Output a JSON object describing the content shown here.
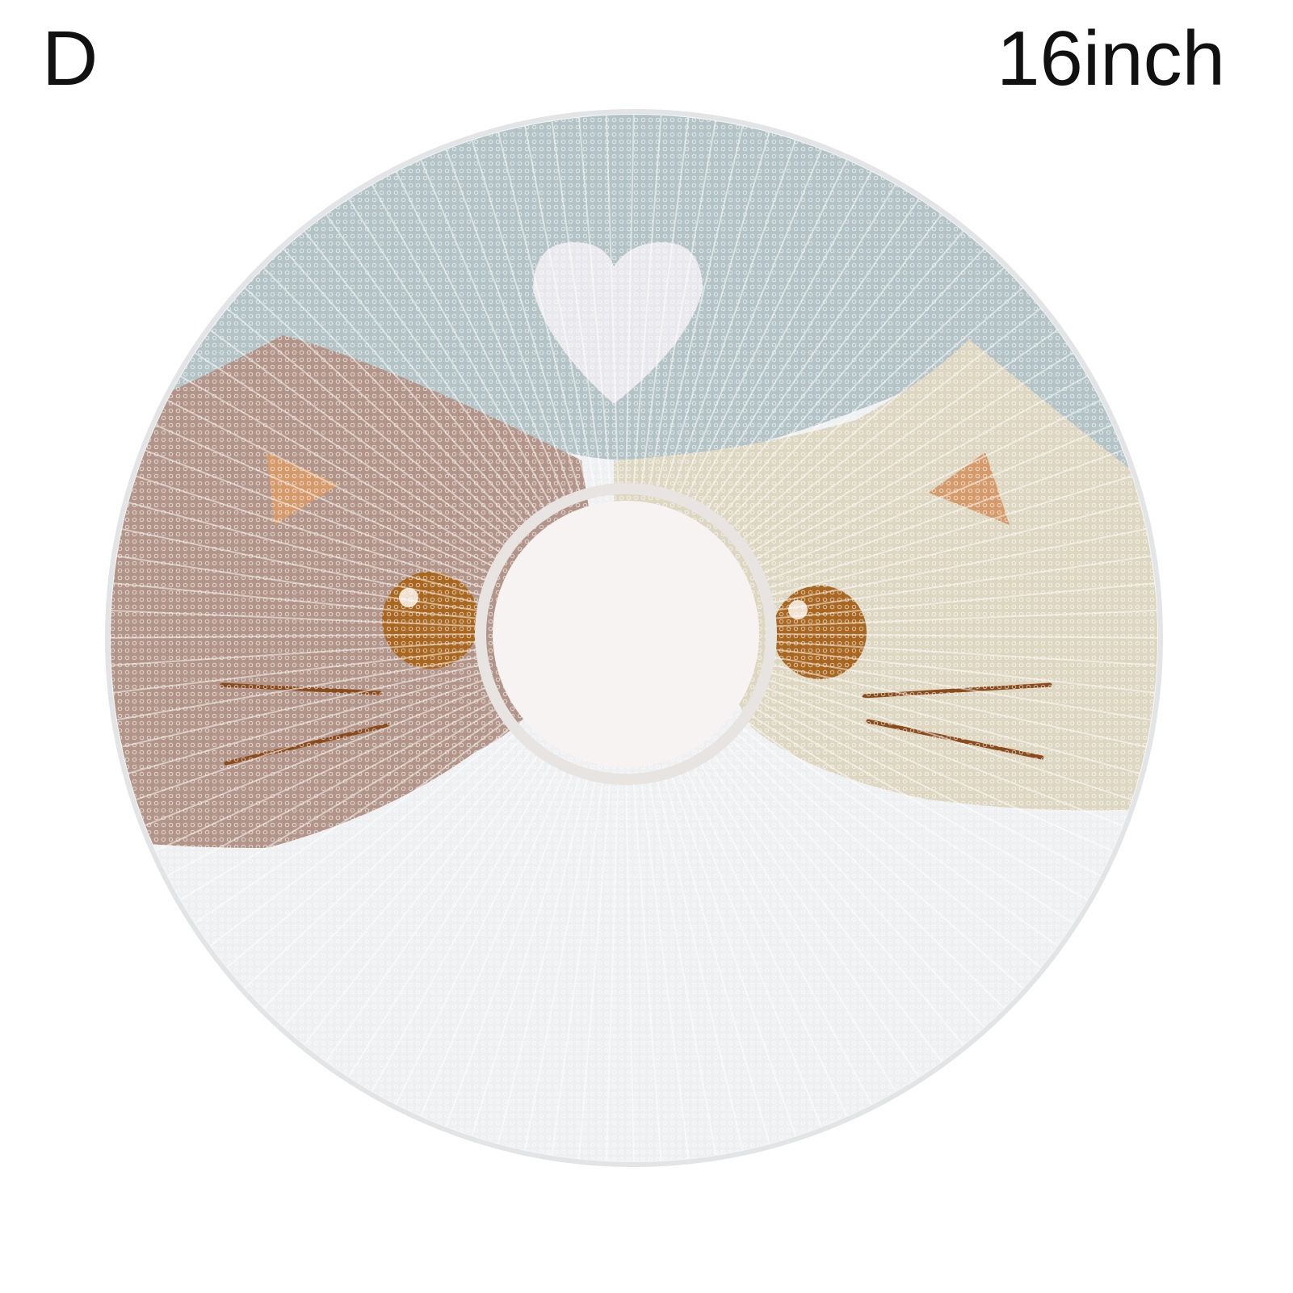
{
  "label": "D",
  "size": "16inch"
}
